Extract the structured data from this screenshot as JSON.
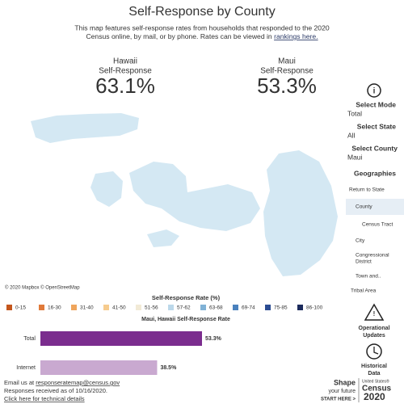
{
  "header": {
    "title": "Self-Response by County",
    "description_1": "This map features self-response rates from households that responded to the 2020",
    "description_2": "Census online, by mail, or by phone. Rates can be viewed in",
    "link": "rankings here."
  },
  "stats": [
    {
      "name": "Hawaii",
      "label": "Self-Response",
      "value": "63.1%"
    },
    {
      "name": "Maui",
      "label": "Self-Response",
      "value": "53.3%"
    }
  ],
  "sidebar": {
    "mode_label": "Select Mode",
    "mode": "Total",
    "state_label": "Select State",
    "state": "All",
    "county_label": "Select County",
    "county": "Maui",
    "geographies": "Geographies",
    "options": [
      "Return to State",
      "County",
      "Census Tract",
      "City",
      "Congressional",
      "District",
      "Town and..",
      "Tribal Area"
    ],
    "updates_1": "Operational",
    "updates_2": "Updates",
    "history_1": "Historical",
    "history_2": "Data"
  },
  "map": {
    "credit": "© 2020 Mapbox © OpenStreetMap"
  },
  "legend": {
    "title": "Self-Response Rate (%)",
    "items": [
      {
        "label": "0-15",
        "color": "#c4561c"
      },
      {
        "label": "16-30",
        "color": "#e07a3a"
      },
      {
        "label": "31-40",
        "color": "#efa55c"
      },
      {
        "label": "41-50",
        "color": "#f6cb8e"
      },
      {
        "label": "51-56",
        "color": "#f2ead6"
      },
      {
        "label": "57-62",
        "color": "#bcd8ea"
      },
      {
        "label": "63-68",
        "color": "#80b2d6"
      },
      {
        "label": "69-74",
        "color": "#4a81bd"
      },
      {
        "label": "75-85",
        "color": "#2b4c92"
      },
      {
        "label": "86-100",
        "color": "#1b2a5c"
      }
    ]
  },
  "chart_data": {
    "type": "bar",
    "title": "Maui, Hawaii Self-Response Rate",
    "categories": [
      "Total",
      "Internet"
    ],
    "series": [
      {
        "name": "Self-Response Rate",
        "colors": [
          "#7b2d8e",
          "#c9a9d0"
        ],
        "values": [
          53.3,
          38.5
        ],
        "value_labels": [
          "53.3%",
          "38.5%"
        ]
      }
    ]
  },
  "footer": {
    "email_prefix": "Email us at",
    "email": "responseratemap@census.gov",
    "received": "Responses received as of 10/16/2020.",
    "technical": "Click here for technical details",
    "shape_1": "Shape",
    "shape_2": "your future",
    "start": "START HERE >",
    "us": "United States®",
    "census": "Census",
    "year": "2020"
  }
}
